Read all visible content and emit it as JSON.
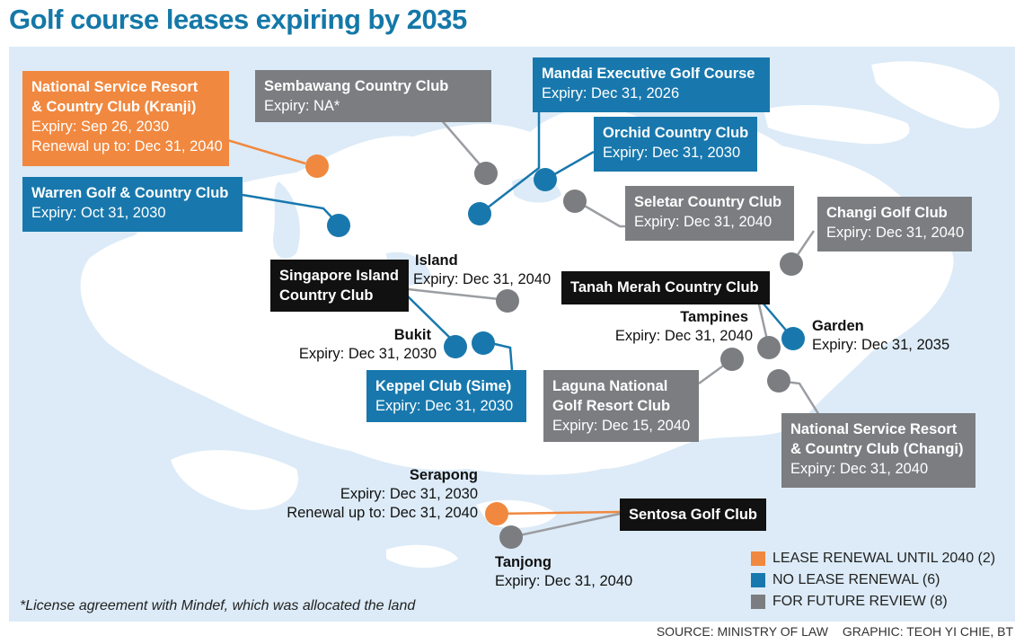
{
  "title": "Golf course leases expiring by 2035",
  "colors": {
    "orange": "#f1883f",
    "blue": "#1878ad",
    "grey": "#7b7d80",
    "black": "#111111",
    "map_land": "#ffffff",
    "map_water": "#dcebf7"
  },
  "boxes": {
    "nsrcc_kranji": {
      "name": [
        "National Service Resort",
        "& Country Club (Kranji)"
      ],
      "expiry": "Expiry: Sep 26, 2030",
      "renewal": "Renewal up to: Dec 31, 2040"
    },
    "sembawang": {
      "name": "Sembawang Country Club",
      "expiry": "Expiry: NA*"
    },
    "mandai": {
      "name": "Mandai Executive Golf Course",
      "expiry": "Expiry: Dec 31, 2026"
    },
    "orchid": {
      "name": "Orchid Country Club",
      "expiry": "Expiry: Dec 31, 2030"
    },
    "warren": {
      "name": "Warren Golf & Country Club",
      "expiry": "Expiry: Oct 31, 2030"
    },
    "seletar": {
      "name": "Seletar Country Club",
      "expiry": "Expiry: Dec 31, 2040"
    },
    "changi": {
      "name": "Changi Golf Club",
      "expiry": "Expiry: Dec 31, 2040"
    },
    "sicc": {
      "name": [
        "Singapore Island",
        "Country Club"
      ]
    },
    "tanah_merah": {
      "name": "Tanah Merah Country Club"
    },
    "keppel": {
      "name": "Keppel Club (Sime)",
      "expiry": "Expiry: Dec 31, 2030"
    },
    "laguna": {
      "name": [
        "Laguna National",
        "Golf Resort Club"
      ],
      "expiry": "Expiry: Dec 15, 2040"
    },
    "nsrcc_changi": {
      "name": [
        "National Service Resort",
        "& Country Club (Changi)"
      ],
      "expiry": "Expiry: Dec 31, 2040"
    },
    "sentosa": {
      "name": "Sentosa Golf Club"
    }
  },
  "labels": {
    "island": {
      "name": "Island",
      "expiry": "Expiry: Dec 31, 2040"
    },
    "bukit": {
      "name": "Bukit",
      "expiry": "Expiry: Dec 31, 2030"
    },
    "tampines": {
      "name": "Tampines",
      "expiry": "Expiry: Dec 31, 2040"
    },
    "garden": {
      "name": "Garden",
      "expiry": "Expiry: Dec 31, 2035"
    },
    "serapong": {
      "name": "Serapong",
      "expiry": "Expiry: Dec 31, 2030",
      "renewal": "Renewal up to: Dec 31, 2040"
    },
    "tanjong": {
      "name": "Tanjong",
      "expiry": "Expiry: Dec 31, 2040"
    }
  },
  "legend": [
    {
      "label": "LEASE RENEWAL UNTIL 2040 (2)",
      "color": "#f1883f"
    },
    {
      "label": "NO LEASE RENEWAL (6)",
      "color": "#1878ad"
    },
    {
      "label": "FOR FUTURE REVIEW (8)",
      "color": "#7b7d80"
    }
  ],
  "footnote": "*License agreement with Mindef, which was allocated the land",
  "source": "SOURCE: MINISTRY OF LAW",
  "graphic": "GRAPHIC: TEOH YI CHIE, BT"
}
